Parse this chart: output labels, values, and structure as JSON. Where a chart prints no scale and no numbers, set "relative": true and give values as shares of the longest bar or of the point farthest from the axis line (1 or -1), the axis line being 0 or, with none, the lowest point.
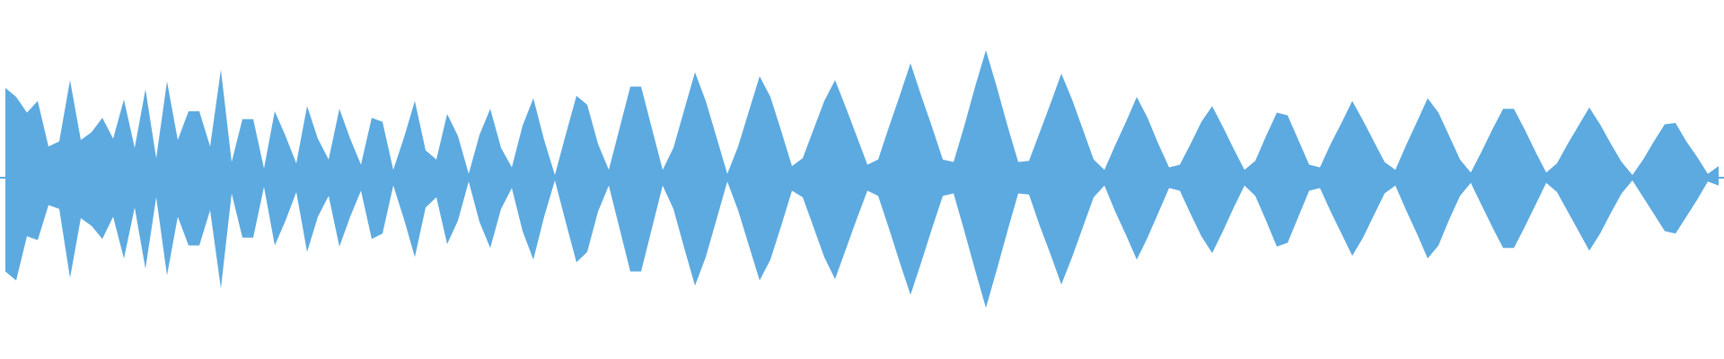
{
  "chart_data": {
    "type": "area",
    "relative": true,
    "ref_lines": [
      {
        "axis": "y",
        "value": 0,
        "color": "#5caae0"
      }
    ],
    "categories": [
      null,
      null,
      null,
      null,
      null,
      null,
      null,
      null,
      null,
      null,
      null,
      null,
      null,
      null,
      null,
      null,
      null,
      null,
      null,
      null,
      null,
      null,
      null,
      null,
      null,
      null,
      null,
      null,
      null,
      null,
      null,
      null,
      null,
      null,
      null,
      null,
      null,
      null,
      null,
      null,
      null,
      null,
      null,
      null,
      null,
      null,
      null,
      null,
      null,
      null,
      null,
      null,
      null,
      null,
      null,
      null,
      null,
      null,
      null,
      null,
      null,
      null,
      null,
      null,
      null,
      null,
      null,
      null,
      null,
      null,
      null,
      null,
      null,
      null,
      null,
      null,
      null,
      null,
      null,
      null,
      null,
      null,
      null,
      null,
      null,
      null,
      null,
      null,
      null,
      null,
      null,
      null,
      null,
      null,
      null,
      null,
      null,
      null,
      null,
      null,
      null,
      null,
      null,
      null,
      null,
      null,
      null,
      null,
      null,
      null,
      null,
      null,
      null,
      null,
      null,
      null,
      null,
      null,
      null,
      null,
      null,
      null,
      null,
      null,
      null,
      null,
      null,
      null,
      null,
      null,
      null,
      null,
      null,
      null,
      null,
      null,
      null,
      null,
      null,
      null,
      null,
      null,
      null,
      null,
      null,
      null,
      null,
      null,
      null,
      null,
      null,
      null,
      null,
      null,
      null,
      null,
      null,
      null,
      null,
      null
    ],
    "series": [
      {
        "color": "#5caae0",
        "values": [
          0.69,
          0.62,
          0.5,
          0.59,
          0.24,
          0.28,
          0.75,
          0.29,
          0.35,
          0.46,
          0.3,
          0.6,
          0.23,
          0.68,
          0.15,
          0.74,
          0.29,
          0.51,
          0.51,
          0.24,
          0.83,
          0.12,
          0.45,
          0.45,
          0.07,
          0.51,
          0.32,
          0.11,
          0.55,
          0.3,
          0.14,
          0.53,
          0.3,
          0.1,
          0.46,
          0.43,
          0.06,
          0.31,
          0.59,
          0.21,
          0.14,
          0.49,
          0.32,
          0.03,
          0.33,
          0.53,
          0.23,
          0.08,
          0.4,
          0.61,
          0.29,
          0.02,
          0.33,
          0.63,
          0.56,
          0.26,
          0.06,
          0.38,
          0.7,
          0.7,
          0.38,
          0.06,
          0.23,
          0.52,
          0.81,
          0.59,
          0.31,
          0.03,
          0.24,
          0.51,
          0.78,
          0.62,
          0.36,
          0.09,
          0.15,
          0.37,
          0.59,
          0.75,
          0.54,
          0.32,
          0.1,
          0.14,
          0.39,
          0.63,
          0.88,
          0.63,
          0.39,
          0.14,
          0.12,
          0.4,
          0.7,
          0.98,
          0.7,
          0.4,
          0.12,
          0.13,
          0.35,
          0.57,
          0.8,
          0.6,
          0.37,
          0.14,
          0.06,
          0.25,
          0.43,
          0.62,
          0.46,
          0.26,
          0.08,
          0.1,
          0.26,
          0.43,
          0.55,
          0.39,
          0.22,
          0.06,
          0.13,
          0.32,
          0.5,
          0.48,
          0.29,
          0.1,
          0.08,
          0.26,
          0.42,
          0.59,
          0.44,
          0.28,
          0.12,
          0.06,
          0.25,
          0.43,
          0.61,
          0.5,
          0.32,
          0.14,
          0.04,
          0.2,
          0.37,
          0.53,
          0.53,
          0.37,
          0.2,
          0.04,
          0.11,
          0.26,
          0.4,
          0.54,
          0.41,
          0.26,
          0.12,
          0.02,
          0.14,
          0.28,
          0.41,
          0.42,
          0.28,
          0.16,
          0.03,
          0.09
        ]
      },
      {
        "color": "#5caae0",
        "values": [
          -0.72,
          -0.79,
          -0.45,
          -0.48,
          -0.21,
          -0.24,
          -0.77,
          -0.31,
          -0.37,
          -0.47,
          -0.3,
          -0.62,
          -0.23,
          -0.7,
          -0.15,
          -0.75,
          -0.3,
          -0.52,
          -0.52,
          -0.25,
          -0.85,
          -0.12,
          -0.46,
          -0.46,
          -0.07,
          -0.52,
          -0.33,
          -0.11,
          -0.57,
          -0.3,
          -0.14,
          -0.53,
          -0.3,
          -0.1,
          -0.47,
          -0.43,
          -0.06,
          -0.32,
          -0.61,
          -0.23,
          -0.15,
          -0.51,
          -0.33,
          -0.03,
          -0.34,
          -0.54,
          -0.24,
          -0.08,
          -0.41,
          -0.63,
          -0.3,
          -0.02,
          -0.34,
          -0.65,
          -0.57,
          -0.26,
          -0.06,
          -0.39,
          -0.72,
          -0.72,
          -0.39,
          -0.06,
          -0.24,
          -0.54,
          -0.83,
          -0.61,
          -0.32,
          -0.03,
          -0.25,
          -0.52,
          -0.79,
          -0.63,
          -0.37,
          -0.1,
          -0.15,
          -0.38,
          -0.61,
          -0.78,
          -0.55,
          -0.32,
          -0.1,
          -0.14,
          -0.39,
          -0.65,
          -0.9,
          -0.65,
          -0.39,
          -0.14,
          -0.12,
          -0.41,
          -0.71,
          -1.0,
          -0.71,
          -0.41,
          -0.12,
          -0.13,
          -0.37,
          -0.59,
          -0.82,
          -0.61,
          -0.38,
          -0.15,
          -0.06,
          -0.26,
          -0.44,
          -0.63,
          -0.46,
          -0.27,
          -0.08,
          -0.1,
          -0.28,
          -0.45,
          -0.58,
          -0.41,
          -0.23,
          -0.06,
          -0.14,
          -0.33,
          -0.53,
          -0.5,
          -0.3,
          -0.1,
          -0.08,
          -0.26,
          -0.43,
          -0.6,
          -0.46,
          -0.29,
          -0.12,
          -0.06,
          -0.25,
          -0.43,
          -0.62,
          -0.52,
          -0.32,
          -0.14,
          -0.04,
          -0.21,
          -0.38,
          -0.54,
          -0.54,
          -0.38,
          -0.21,
          -0.04,
          -0.11,
          -0.26,
          -0.41,
          -0.56,
          -0.43,
          -0.27,
          -0.12,
          -0.02,
          -0.15,
          -0.28,
          -0.41,
          -0.43,
          -0.3,
          -0.17,
          -0.03,
          -0.06
        ]
      }
    ]
  }
}
